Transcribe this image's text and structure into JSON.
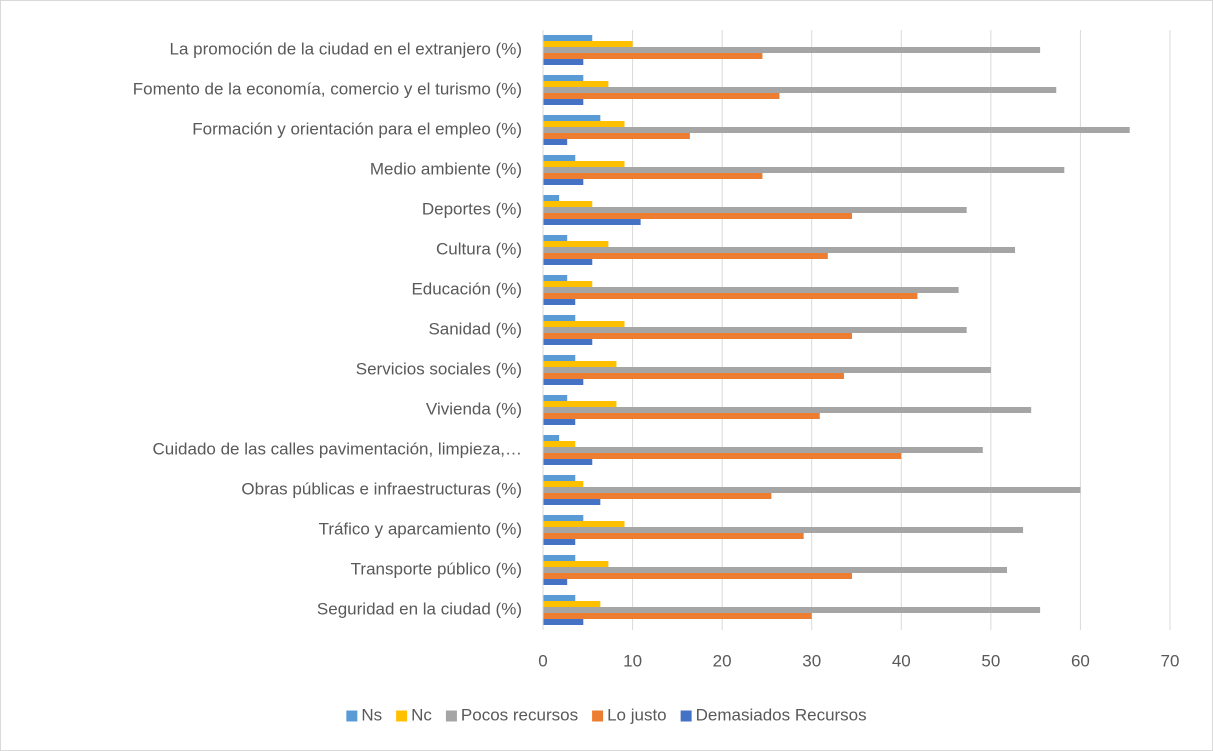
{
  "chart_data": {
    "type": "hbar",
    "categories": [
      "La promoción de la ciudad en el extranjero (%)",
      "Fomento de la economía, comercio y el turismo (%)",
      "Formación y orientación para el empleo (%)",
      "Medio ambiente (%)",
      "Deportes (%)",
      "Cultura (%)",
      "Educación (%)",
      "Sanidad  (%)",
      "Servicios sociales  (%)",
      "Vivienda  (%)",
      "Cuidado de las calles pavimentación, limpieza,…",
      "Obras públicas e infraestructuras  (%)",
      "Tráfico y aparcamiento  (%)",
      "Transporte público  (%)",
      "Seguridad en la ciudad  (%)"
    ],
    "series": [
      {
        "name": "Ns",
        "color": "#5b9bd5",
        "values": [
          5.5,
          4.5,
          6.4,
          3.6,
          1.8,
          2.7,
          2.7,
          3.6,
          3.6,
          2.7,
          1.8,
          3.6,
          4.5,
          3.6,
          3.6
        ]
      },
      {
        "name": "Nc",
        "color": "#ffc000",
        "values": [
          10,
          7.3,
          9.1,
          9.1,
          5.5,
          7.3,
          5.5,
          9.1,
          8.2,
          8.2,
          3.6,
          4.5,
          9.1,
          7.3,
          6.4
        ]
      },
      {
        "name": "Pocos recursos",
        "color": "#a5a5a5",
        "values": [
          55.5,
          57.3,
          65.5,
          58.2,
          47.3,
          52.7,
          46.4,
          47.3,
          50,
          54.5,
          49.1,
          60,
          53.6,
          51.8,
          55.5
        ]
      },
      {
        "name": "Lo justo",
        "color": "#ed7d31",
        "values": [
          24.5,
          26.4,
          16.4,
          24.5,
          34.5,
          31.8,
          41.8,
          34.5,
          33.6,
          30.9,
          40,
          25.5,
          29.1,
          34.5,
          30
        ]
      },
      {
        "name": "Demasiados Recursos",
        "color": "#4472c4",
        "values": [
          4.5,
          4.5,
          2.7,
          4.5,
          10.9,
          5.5,
          3.6,
          5.5,
          4.5,
          3.6,
          5.5,
          6.4,
          3.6,
          2.7,
          4.5
        ]
      }
    ],
    "xlim": [
      0,
      70
    ],
    "xticks": [
      0,
      10,
      20,
      30,
      40,
      50,
      60,
      70
    ],
    "grid": true,
    "legend": "bottom"
  }
}
